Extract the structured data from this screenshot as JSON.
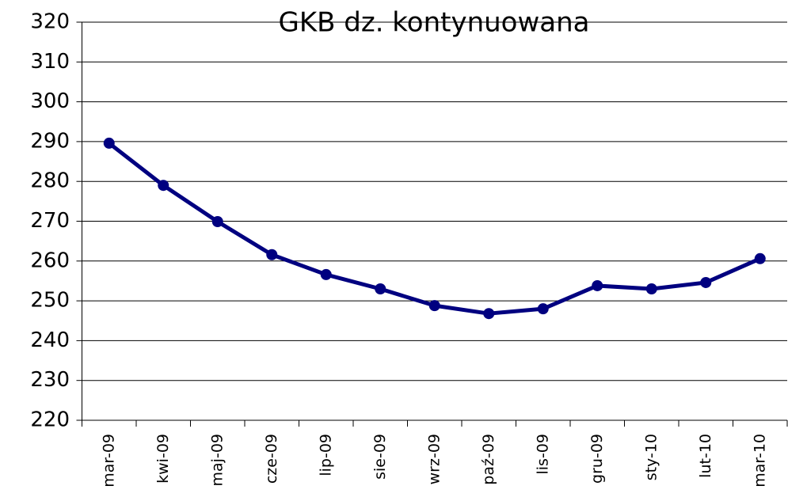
{
  "chart_data": {
    "type": "line",
    "title": "GKB dz. kontynuowana",
    "categories": [
      "mar-09",
      "kwi-09",
      "maj-09",
      "cze-09",
      "lip-09",
      "sie-09",
      "wrz-09",
      "paź-09",
      "lis-09",
      "gru-09",
      "sty-10",
      "lut-10",
      "mar-10"
    ],
    "series": [
      {
        "name": "GKB dz. kontynuowana",
        "color": "#000080",
        "values": [
          289.6,
          279.0,
          269.9,
          261.6,
          256.6,
          253.0,
          248.8,
          246.8,
          248.0,
          253.8,
          253.0,
          254.6,
          260.6
        ]
      }
    ],
    "ylim": [
      220,
      320
    ],
    "yticks": [
      220,
      230,
      240,
      250,
      260,
      270,
      280,
      290,
      300,
      310,
      320
    ],
    "grid": true
  }
}
